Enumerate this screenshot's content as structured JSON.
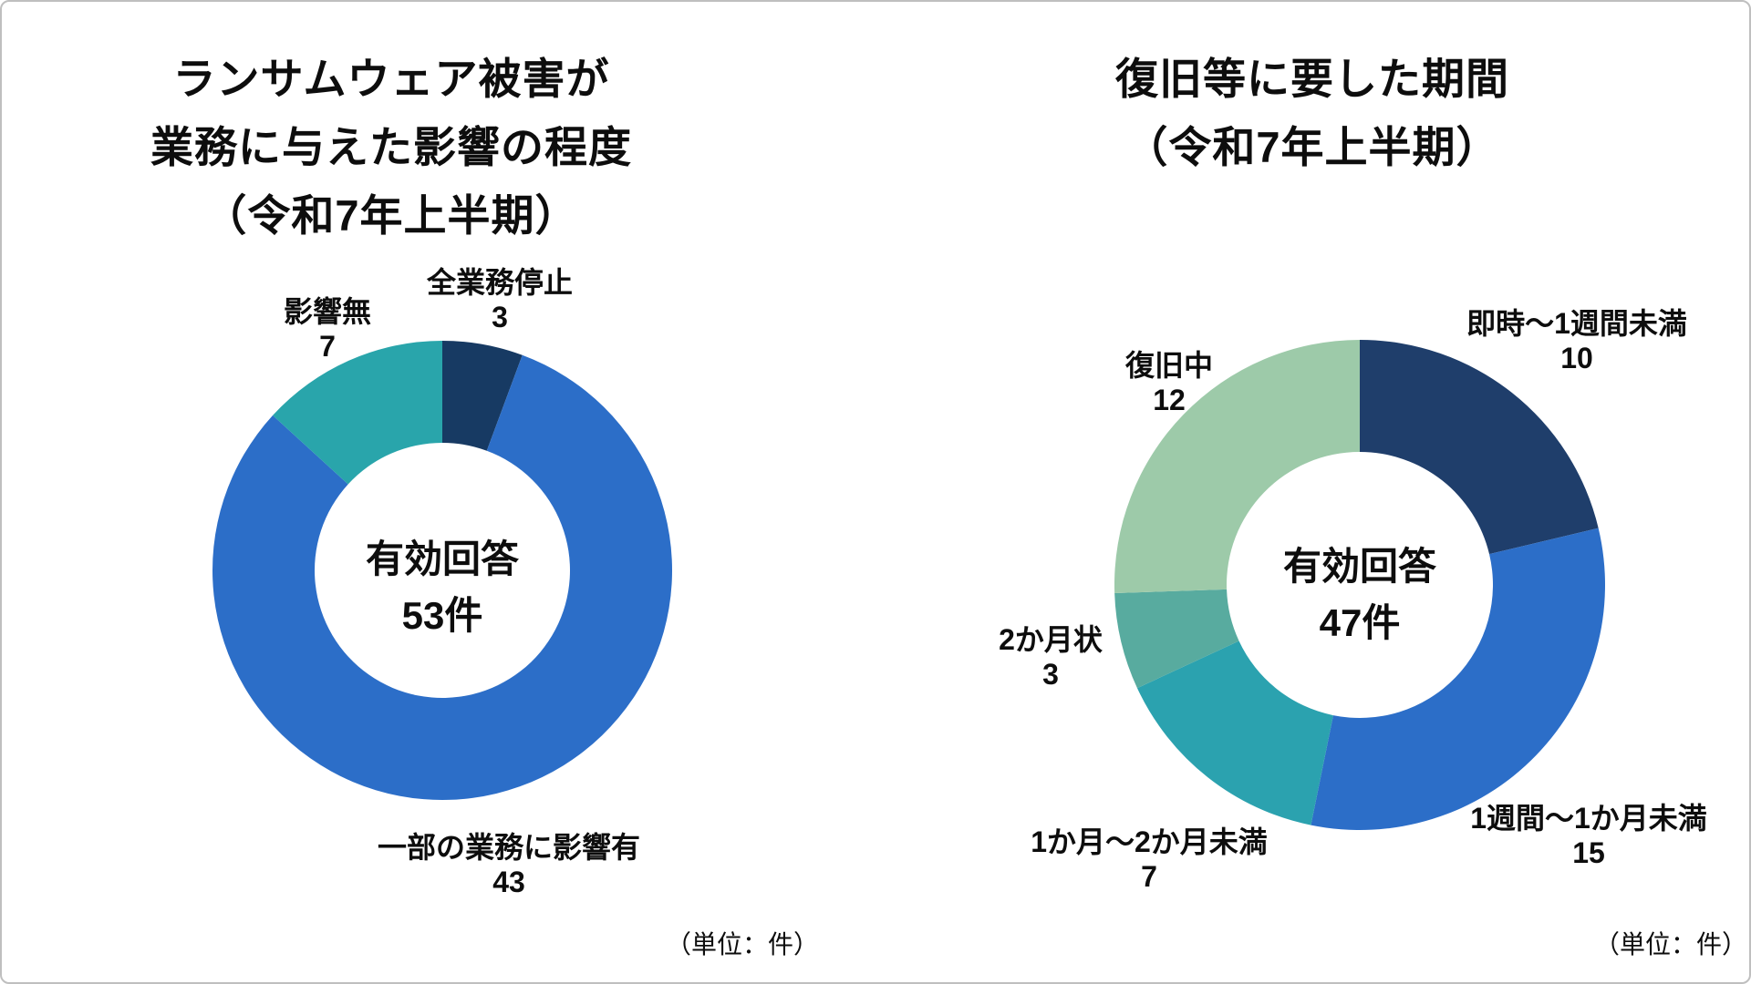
{
  "chart_data": [
    {
      "type": "pie",
      "subtype": "donut",
      "title_lines": [
        "ランサムウェア被害が",
        "業務に与えた影響の程度",
        "（令和7年上半期）"
      ],
      "center_label": {
        "line1": "有効回答",
        "line2": "53件"
      },
      "total": 53,
      "unit_note": "（単位：件）",
      "start_angle_deg": 0,
      "direction": "clockwise",
      "legend_position": "outside-labels",
      "slices": [
        {
          "label": "全業務停止",
          "value": 3,
          "color": "#173A63"
        },
        {
          "label": "一部の業務に影響有",
          "value": 43,
          "color": "#2C6EC8"
        },
        {
          "label": "影響無",
          "value": 7,
          "color": "#29A5AB"
        }
      ]
    },
    {
      "type": "pie",
      "subtype": "donut",
      "title_lines": [
        "復旧等に要した期間",
        "（令和7年上半期）"
      ],
      "center_label": {
        "line1": "有効回答",
        "line2": "47件"
      },
      "total": 47,
      "unit_note": "（単位：件）",
      "start_angle_deg": 0,
      "direction": "clockwise",
      "legend_position": "outside-labels",
      "slices": [
        {
          "label": "即時～1週間未満",
          "value": 10,
          "color": "#1F3E6B"
        },
        {
          "label": "1週間～1か月未満",
          "value": 15,
          "color": "#2C6EC8"
        },
        {
          "label": "1か月～2か月未満",
          "value": 7,
          "color": "#2BA2AF"
        },
        {
          "label": "2か月状",
          "value": 3,
          "color": "#58AB9F"
        },
        {
          "label": "復旧中",
          "value": 12,
          "color": "#9DCAA9"
        }
      ]
    }
  ]
}
